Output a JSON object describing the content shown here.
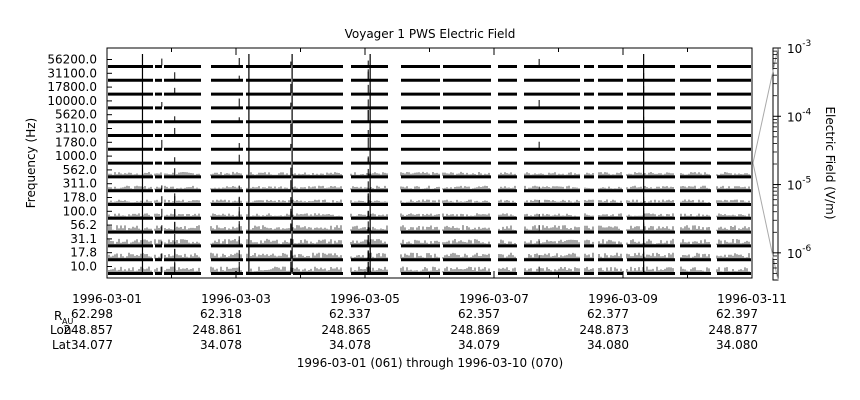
{
  "chart_data": {
    "type": "line",
    "title": "Voyager 1 PWS Electric Field",
    "ylabel": "Frequency (Hz)",
    "channel_labels": [
      "56200.0",
      "31100.0",
      "17800.0",
      "10000.0",
      "5620.0",
      "3110.0",
      "1780.0",
      "1000.0",
      "562.0",
      "311.0",
      "178.0",
      "100.0",
      "56.2",
      "31.1",
      "17.8",
      "10.0"
    ],
    "x_tick_labels": [
      "1996-03-01",
      "1996-03-03",
      "1996-03-05",
      "1996-03-07",
      "1996-03-09",
      "1996-03-11"
    ],
    "xlim": [
      "1996-03-01",
      "1996-03-11"
    ],
    "data_gaps_days": [
      [
        0.7,
        0.73
      ],
      [
        0.85,
        0.88
      ],
      [
        1.45,
        1.6
      ],
      [
        2.1,
        2.15
      ],
      [
        2.85,
        2.88
      ],
      [
        3.65,
        3.78
      ],
      [
        4.35,
        4.55
      ],
      [
        5.15,
        5.2
      ],
      [
        5.95,
        6.05
      ],
      [
        6.35,
        6.45
      ],
      [
        7.32,
        7.38
      ],
      [
        7.55,
        7.6
      ],
      [
        8.0,
        8.05
      ],
      [
        8.8,
        8.88
      ],
      [
        9.35,
        9.45
      ]
    ],
    "spikes_day": [
      0.85,
      1.05,
      1.05,
      2.05,
      2.05,
      2.85,
      2.85,
      4.05,
      4.05,
      4.05,
      4.05,
      4.08,
      6.7,
      8.32,
      8.32
    ],
    "colorbar": {
      "label": "Electric Field (V/m)",
      "scale": "log",
      "tick_labels": [
        "10^-3",
        "10^-4",
        "10^-5",
        "10^-6"
      ],
      "range": [
        4e-07,
        0.001
      ]
    },
    "ephemeris": {
      "row_labels": [
        "R",
        "AU",
        "Lon",
        "Lat"
      ],
      "R_AU": [
        "62.298",
        "62.318",
        "62.337",
        "62.357",
        "62.377",
        "62.397"
      ],
      "Lon": [
        "248.857",
        "248.861",
        "248.865",
        "248.869",
        "248.873",
        "248.877"
      ],
      "Lat": [
        "34.077",
        "34.078",
        "34.078",
        "34.079",
        "34.080",
        "34.080"
      ]
    },
    "date_range_label": "1996-03-01 (061) through 1996-03-10 (070)"
  }
}
